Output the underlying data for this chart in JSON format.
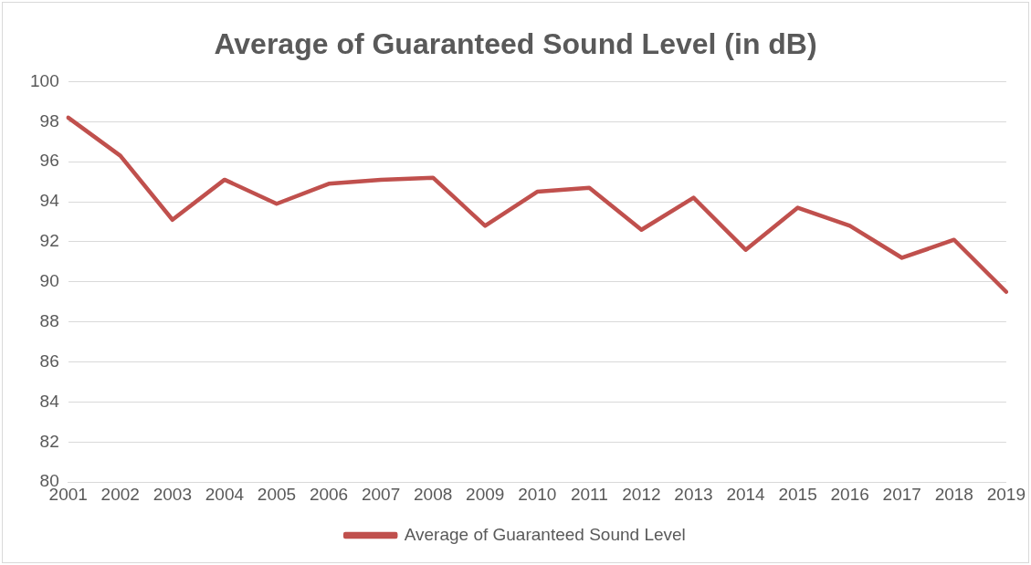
{
  "chart_data": {
    "type": "line",
    "title": "Average of Guaranteed Sound Level (in dB)",
    "categories": [
      "2001",
      "2002",
      "2003",
      "2004",
      "2005",
      "2006",
      "2007",
      "2008",
      "2009",
      "2010",
      "2011",
      "2012",
      "2013",
      "2014",
      "2015",
      "2016",
      "2017",
      "2018",
      "2019"
    ],
    "series": [
      {
        "name": "Average of Guaranteed Sound Level",
        "color": "#c0504d",
        "values": [
          98.2,
          96.3,
          93.1,
          95.1,
          93.9,
          94.9,
          95.1,
          95.2,
          92.8,
          94.5,
          94.7,
          92.6,
          94.2,
          91.6,
          93.7,
          92.8,
          91.2,
          92.1,
          89.5
        ]
      }
    ],
    "ylim": [
      80,
      100
    ],
    "yticks": [
      80,
      82,
      84,
      86,
      88,
      90,
      92,
      94,
      96,
      98,
      100
    ],
    "grid": "y",
    "legend": "bottom",
    "marker": "none"
  }
}
